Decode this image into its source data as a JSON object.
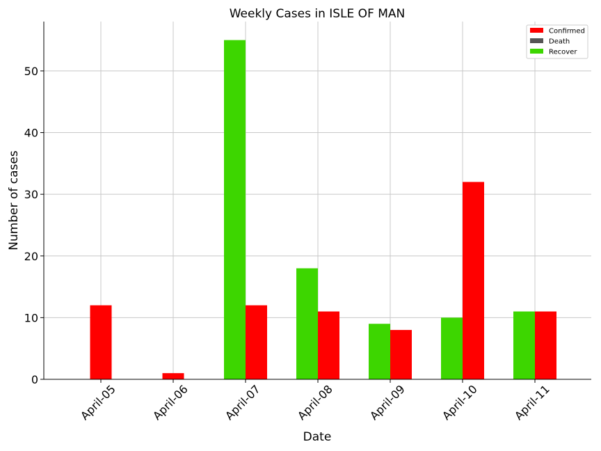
{
  "chart_data": {
    "type": "bar",
    "title": "Weekly Cases in ISLE OF MAN",
    "xlabel": "Date",
    "ylabel": "Number of cases",
    "categories": [
      "April-05",
      "April-06",
      "April-07",
      "April-08",
      "April-09",
      "April-10",
      "April-11"
    ],
    "series": [
      {
        "name": "Confirmed",
        "color": "#ff0000",
        "values": [
          12,
          1,
          12,
          11,
          8,
          32,
          11
        ]
      },
      {
        "name": "Death",
        "color": "#555555",
        "values": [
          0,
          0,
          0,
          0,
          0,
          0,
          0
        ]
      },
      {
        "name": "Recover",
        "color": "#3dd600",
        "values": [
          0,
          0,
          55,
          18,
          9,
          10,
          11
        ]
      }
    ],
    "ylim": [
      0,
      58
    ],
    "yticks": [
      0,
      10,
      20,
      30,
      40,
      50
    ],
    "grid": true,
    "legend": "top-right"
  }
}
